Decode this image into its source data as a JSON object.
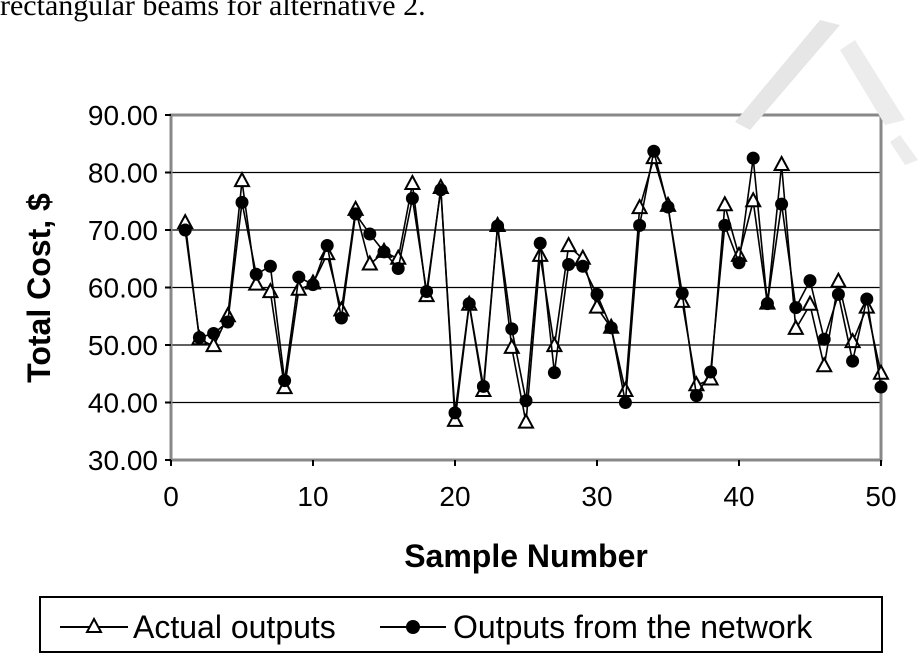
{
  "header": {
    "intro_text": "rectangular beams for alternative 2."
  },
  "chart_data": {
    "type": "line",
    "title": "",
    "xlabel": "Sample Number",
    "ylabel": "Total Cost, $",
    "xlim": [
      0,
      50
    ],
    "ylim": [
      30,
      90
    ],
    "xticks": [
      "0",
      "10",
      "20",
      "30",
      "40",
      "50"
    ],
    "yticks": [
      "30.00",
      "40.00",
      "50.00",
      "60.00",
      "70.00",
      "80.00",
      "90.00"
    ],
    "grid": "horizontal",
    "legend_position": "bottom",
    "x": [
      1,
      2,
      3,
      4,
      5,
      6,
      7,
      8,
      9,
      10,
      11,
      12,
      13,
      14,
      15,
      16,
      17,
      18,
      19,
      20,
      21,
      22,
      23,
      24,
      25,
      26,
      27,
      28,
      29,
      30,
      31,
      32,
      33,
      34,
      35,
      36,
      37,
      38,
      39,
      40,
      41,
      42,
      43,
      44,
      45,
      46,
      47,
      48,
      49,
      50
    ],
    "series": [
      {
        "name": "Actual outputs",
        "marker": "triangle",
        "values": [
          71.2,
          51.0,
          49.8,
          55.0,
          78.5,
          60.5,
          59.2,
          42.5,
          59.6,
          60.7,
          65.8,
          56.0,
          73.5,
          64.0,
          66.2,
          65.0,
          78.0,
          58.5,
          77.3,
          36.8,
          57.0,
          42.0,
          70.7,
          49.5,
          36.5,
          65.5,
          49.8,
          67.2,
          65.0,
          56.5,
          53.0,
          42.0,
          73.8,
          82.5,
          74.2,
          57.5,
          43.0,
          44.0,
          74.3,
          65.5,
          75.0,
          57.2,
          81.3,
          52.8,
          57.0,
          46.3,
          61.0,
          50.5,
          56.5,
          45.0
        ]
      },
      {
        "name": "Outputs from the network",
        "marker": "circle",
        "values": [
          70.0,
          51.3,
          52.0,
          54.0,
          74.8,
          62.3,
          63.7,
          43.8,
          61.8,
          60.5,
          67.3,
          54.7,
          72.8,
          69.3,
          66.2,
          63.3,
          75.5,
          59.3,
          77.0,
          38.2,
          57.2,
          42.8,
          70.7,
          52.8,
          40.3,
          67.7,
          45.2,
          64.0,
          63.7,
          58.8,
          53.0,
          40.0,
          70.8,
          83.7,
          74.0,
          59.0,
          41.2,
          45.3,
          70.8,
          64.3,
          82.5,
          57.2,
          74.5,
          56.5,
          61.2,
          51.0,
          58.8,
          47.2,
          58.0,
          42.7
        ]
      }
    ]
  }
}
